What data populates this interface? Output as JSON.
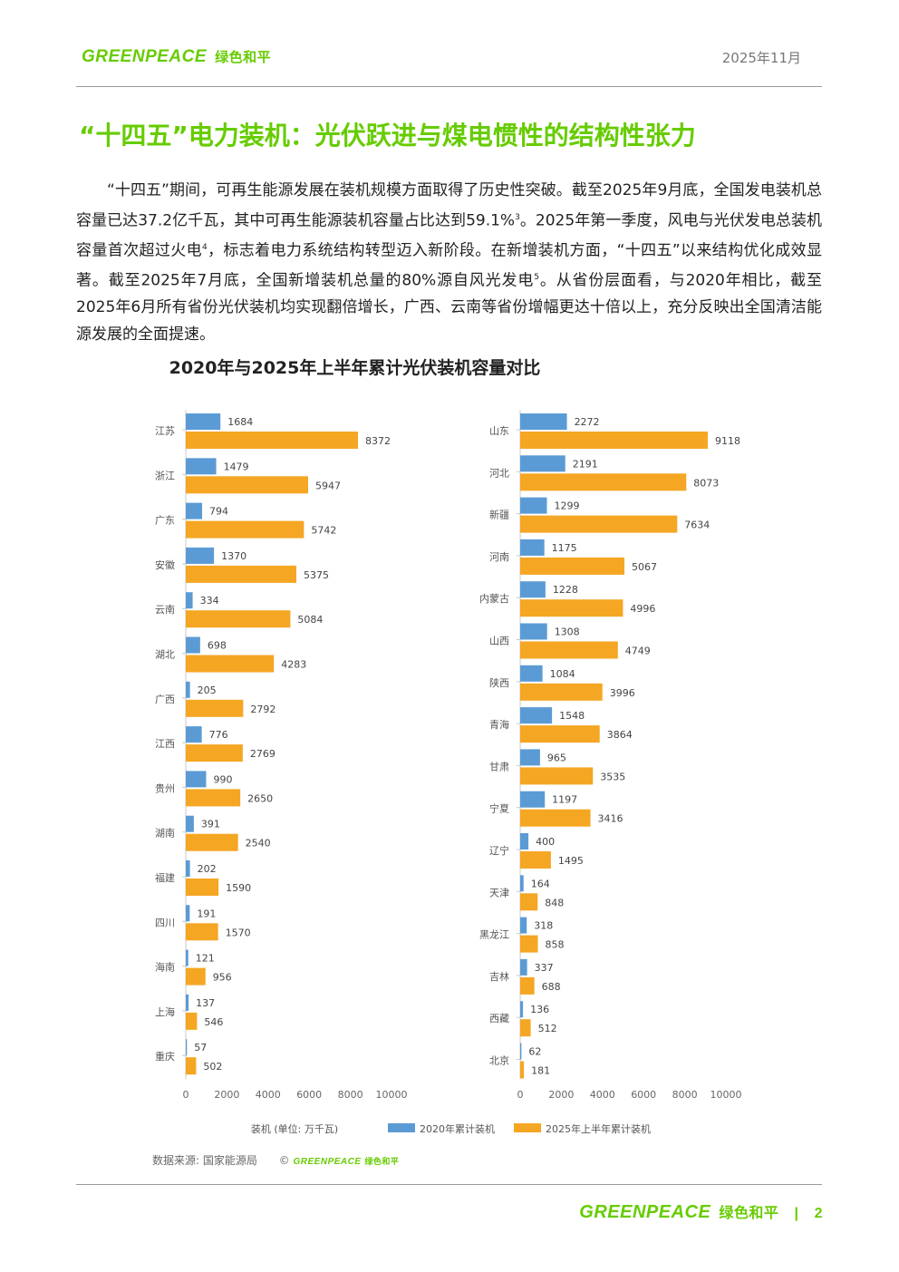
{
  "header": {
    "logo_en": "GREENPEACE",
    "logo_cn": "绿色和平",
    "date": "2025年11月"
  },
  "title": "“十四五”电力装机：光伏跃进与煤电惯性的结构性张力",
  "paragraph": {
    "p1": "“十四五”期间，可再生能源发展在装机规模方面取得了历史性突破。截至2025年9月底，全国发电装机总容量已达37.2亿千瓦，其中可再生能源装机容量占比达到59.1%",
    "sup1": "3",
    "p2": "。2025年第一季度，风电与光伏发电总装机容量首次超过火电",
    "sup2": "4",
    "p3": "，标志着电力系统结构转型迈入新阶段。在新增装机方面，“十四五”以来结构优化成效显著。截至2025年7月底，全国新增装机总量的80%源自风光发电",
    "sup3": "5",
    "p4": "。从省份层面看，与2020年相比，截至2025年6月所有省份光伏装机均实现翻倍增长，广西、云南等省份增幅更达十倍以上，充分反映出全国清洁能源发展的全面提速。"
  },
  "chart_data": {
    "type": "bar",
    "orientation": "horizontal",
    "title": "2020年与2025年上半年累计光伏装机容量对比",
    "xlabel": "装机 (单位: 万千瓦)",
    "xlim": [
      0,
      10000
    ],
    "xticks": [
      "0",
      "2000",
      "4000",
      "6000",
      "8000",
      "10000"
    ],
    "legend": [
      "2020年累计装机",
      "2025年上半年累计装机"
    ],
    "colors": {
      "s2020": "#5b9bd5",
      "s2025": "#f5a623"
    },
    "panels": [
      {
        "categories": [
          "江苏",
          "浙江",
          "广东",
          "安徽",
          "云南",
          "湖北",
          "广西",
          "江西",
          "贵州",
          "湖南",
          "福建",
          "四川",
          "海南",
          "上海",
          "重庆"
        ],
        "series": [
          {
            "name": "2020年累计装机",
            "values": [
              1684,
              1479,
              794,
              1370,
              334,
              698,
              205,
              776,
              990,
              391,
              202,
              191,
              121,
              137,
              57
            ]
          },
          {
            "name": "2025年上半年累计装机",
            "values": [
              8372,
              5947,
              5742,
              5375,
              5084,
              4283,
              2792,
              2769,
              2650,
              2540,
              1590,
              1570,
              956,
              546,
              502
            ]
          }
        ]
      },
      {
        "categories": [
          "山东",
          "河北",
          "新疆",
          "河南",
          "内蒙古",
          "山西",
          "陕西",
          "青海",
          "甘肃",
          "宁夏",
          "辽宁",
          "天津",
          "黑龙江",
          "吉林",
          "西藏",
          "北京"
        ],
        "series": [
          {
            "name": "2020年累计装机",
            "values": [
              2272,
              2191,
              1299,
              1175,
              1228,
              1308,
              1084,
              1548,
              965,
              1197,
              400,
              164,
              318,
              337,
              136,
              62
            ]
          },
          {
            "name": "2025年上半年累计装机",
            "values": [
              9118,
              8073,
              7634,
              5067,
              4996,
              4749,
              3996,
              3864,
              3535,
              3416,
              1495,
              848,
              858,
              688,
              512,
              181
            ]
          }
        ]
      }
    ]
  },
  "source": {
    "label": "数据来源: 国家能源局",
    "copyright": "©",
    "logo_en": "GREENPEACE",
    "logo_cn": "绿色和平"
  },
  "footer": {
    "logo_en": "GREENPEACE",
    "logo_cn": "绿色和平",
    "separator": "|",
    "page": "2"
  }
}
